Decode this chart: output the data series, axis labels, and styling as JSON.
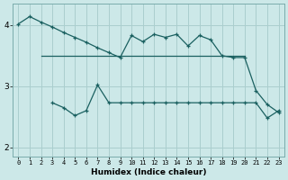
{
  "xlabel": "Humidex (Indice chaleur)",
  "bg_color": "#cce8e8",
  "line_color": "#1a6060",
  "grid_color": "#aacece",
  "xlim": [
    -0.5,
    23.5
  ],
  "ylim": [
    1.85,
    4.35
  ],
  "yticks": [
    2,
    3,
    4
  ],
  "xticks": [
    0,
    1,
    2,
    3,
    4,
    5,
    6,
    7,
    8,
    9,
    10,
    11,
    12,
    13,
    14,
    15,
    16,
    17,
    18,
    19,
    20,
    21,
    22,
    23
  ],
  "line1_x": [
    0,
    1,
    2,
    3,
    4,
    5,
    6,
    7,
    8,
    9,
    10,
    11,
    12,
    13,
    14,
    15,
    16,
    17,
    18,
    19,
    20,
    21,
    22,
    23
  ],
  "line1_y": [
    4.02,
    4.14,
    4.05,
    3.97,
    3.88,
    3.8,
    3.72,
    3.63,
    3.55,
    3.47,
    3.83,
    3.73,
    3.85,
    3.8,
    3.85,
    3.66,
    3.83,
    3.76,
    3.5,
    3.47,
    3.47,
    2.93,
    2.7,
    2.57
  ],
  "line2_x": [
    2,
    3,
    4,
    5,
    6,
    7,
    8,
    9,
    10,
    11,
    12,
    13,
    14,
    15,
    16,
    17,
    18,
    19,
    20
  ],
  "line2_y": [
    3.5,
    3.5,
    3.5,
    3.5,
    3.5,
    3.5,
    3.5,
    3.5,
    3.5,
    3.5,
    3.5,
    3.5,
    3.5,
    3.5,
    3.5,
    3.5,
    3.5,
    3.5,
    3.5
  ],
  "line3_x": [
    3,
    4,
    5,
    6,
    7,
    8,
    9,
    10,
    11,
    12,
    13,
    14,
    15,
    16,
    17,
    18,
    19,
    20,
    21,
    22,
    23
  ],
  "line3_y": [
    2.73,
    2.65,
    2.52,
    2.6,
    3.02,
    2.73,
    2.73,
    2.73,
    2.73,
    2.73,
    2.73,
    2.73,
    2.73,
    2.73,
    2.73,
    2.73,
    2.73,
    2.73,
    2.73,
    2.48,
    2.6
  ]
}
